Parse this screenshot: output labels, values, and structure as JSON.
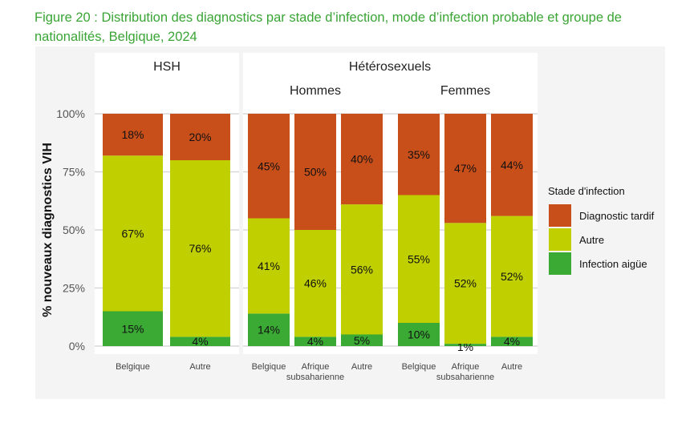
{
  "title": "Figure 20 : Distribution des diagnostics par stade d’infection, mode d’infection probable et groupe de nationalités, Belgique, 2024",
  "chart_data": {
    "type": "bar",
    "stacked": true,
    "ylabel": "% nouveaux diagnostics VIH",
    "ylim": [
      0,
      100
    ],
    "yticks": [
      "0%",
      "25%",
      "50%",
      "75%",
      "100%"
    ],
    "facets": [
      {
        "label": "HSH",
        "subfacets": [
          {
            "label": "",
            "categories": [
              "Belgique",
              "Autre"
            ]
          }
        ]
      },
      {
        "label": "Hétérosexuels",
        "subfacets": [
          {
            "label": "Hommes",
            "categories": [
              "Belgique",
              "Afrique subsaharienne",
              "Autre"
            ]
          },
          {
            "label": "Femmes",
            "categories": [
              "Belgique",
              "Afrique subsaharienne",
              "Autre"
            ]
          }
        ]
      }
    ],
    "series": [
      {
        "name": "Infection aigüe",
        "color": "#3aaa35",
        "values": [
          15,
          4,
          14,
          4,
          5,
          10,
          1,
          4
        ]
      },
      {
        "name": "Autre",
        "color": "#bfcf00",
        "values": [
          67,
          76,
          41,
          46,
          56,
          55,
          52,
          52
        ]
      },
      {
        "name": "Diagnostic tardif",
        "color": "#c94f1a",
        "values": [
          18,
          20,
          45,
          50,
          40,
          35,
          47,
          44
        ]
      }
    ],
    "legend": {
      "title": "Stade d'infection",
      "placement": "right",
      "order": [
        "Diagnostic tardif",
        "Autre",
        "Infection aigüe"
      ]
    },
    "grid": true
  }
}
